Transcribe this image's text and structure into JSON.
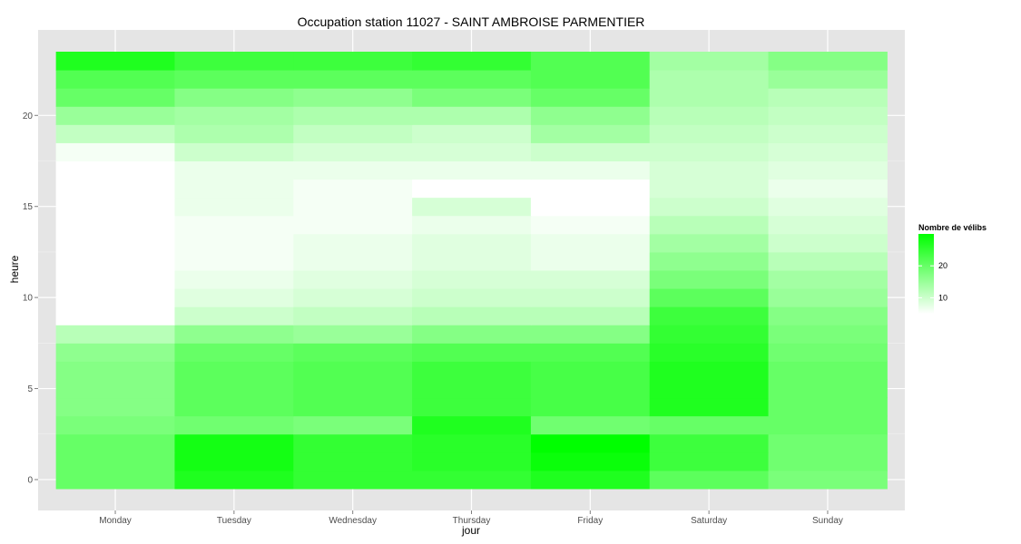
{
  "chart_data": {
    "type": "heatmap",
    "title": "Occupation station 11027 - SAINT AMBROISE PARMENTIER",
    "xlabel": "jour",
    "ylabel": "heure",
    "categories": [
      "Monday",
      "Tuesday",
      "Wednesday",
      "Thursday",
      "Friday",
      "Saturday",
      "Sunday"
    ],
    "hours": [
      0,
      1,
      2,
      3,
      4,
      5,
      6,
      7,
      8,
      9,
      10,
      11,
      12,
      13,
      14,
      15,
      16,
      17,
      18,
      19,
      20,
      21,
      22,
      23
    ],
    "ylim": [
      -0.5,
      23.5
    ],
    "yticks": [
      0,
      5,
      10,
      15,
      20
    ],
    "grid": true,
    "values": [
      [
        20,
        27,
        25,
        25,
        27,
        21,
        18
      ],
      [
        20,
        28,
        25,
        26,
        29,
        24,
        19
      ],
      [
        20,
        28,
        25,
        26,
        30,
        24,
        19
      ],
      [
        18,
        19,
        18,
        27,
        19,
        20,
        20
      ],
      [
        17,
        21,
        22,
        24,
        23,
        27,
        20
      ],
      [
        17,
        21,
        22,
        24,
        23,
        27,
        20
      ],
      [
        17,
        21,
        22,
        24,
        23,
        27,
        20
      ],
      [
        16,
        20,
        21,
        22,
        22,
        26,
        19
      ],
      [
        12,
        16,
        15,
        17,
        17,
        25,
        18
      ],
      [
        5,
        10,
        11,
        12,
        12,
        24,
        17
      ],
      [
        3,
        8,
        9,
        10,
        10,
        21,
        15
      ],
      [
        2,
        7,
        8,
        9,
        9,
        18,
        14
      ],
      [
        2,
        6,
        7,
        8,
        7,
        16,
        12
      ],
      [
        3,
        6,
        7,
        8,
        7,
        14,
        10
      ],
      [
        3,
        6,
        6,
        7,
        6,
        12,
        9
      ],
      [
        3,
        7,
        6,
        9,
        5,
        10,
        8
      ],
      [
        3,
        7,
        6,
        5,
        5,
        9,
        7
      ],
      [
        4,
        7,
        7,
        7,
        7,
        9,
        8
      ],
      [
        6,
        10,
        9,
        9,
        10,
        10,
        9
      ],
      [
        11,
        13,
        11,
        10,
        14,
        11,
        10
      ],
      [
        15,
        14,
        13,
        13,
        16,
        12,
        11
      ],
      [
        20,
        17,
        16,
        18,
        20,
        13,
        12
      ],
      [
        22,
        21,
        21,
        21,
        22,
        13,
        15
      ],
      [
        27,
        24,
        24,
        25,
        22,
        14,
        17
      ]
    ],
    "legend": {
      "title": "Nombre de vélibs",
      "position": "right",
      "ticks": [
        10,
        20
      ],
      "min": 5,
      "max": 30,
      "low_color": "#ffffff",
      "high_color": "#00ff00"
    },
    "colors": {
      "panel_background": "#e5e5e5",
      "grid_major": "#ffffff",
      "grid_minor": "#f2f2f2"
    }
  }
}
